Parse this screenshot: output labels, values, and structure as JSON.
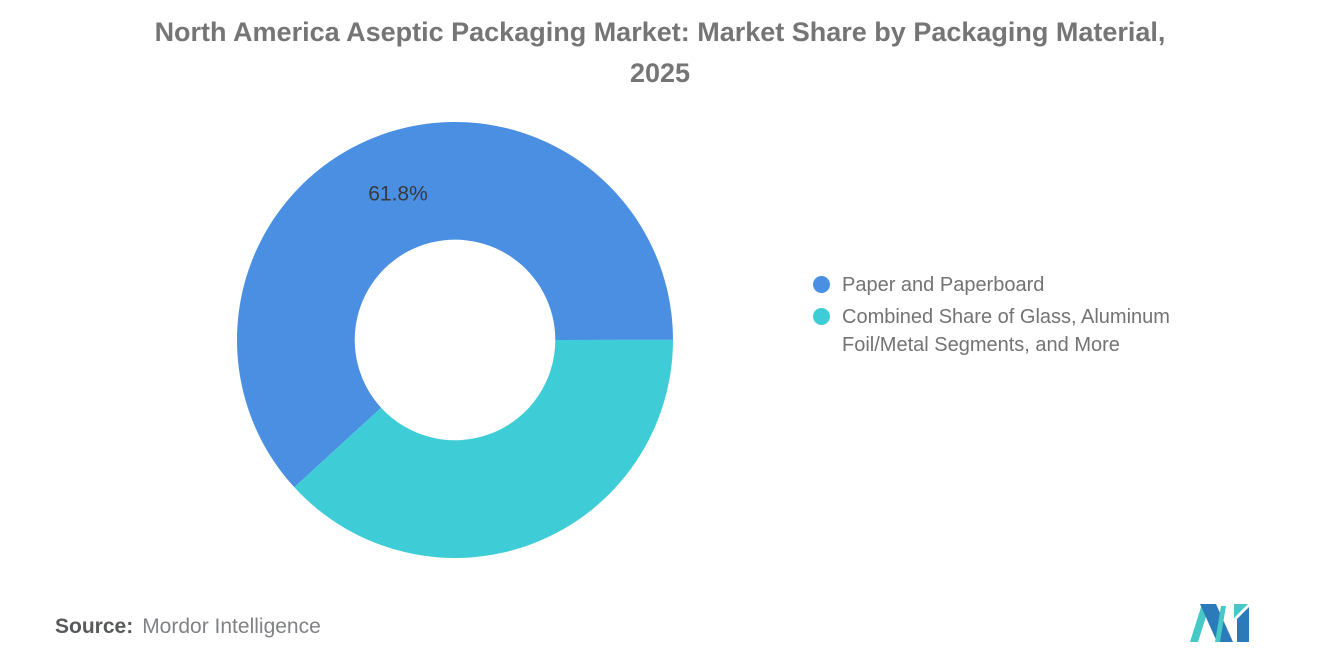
{
  "chart_data": {
    "type": "pie",
    "donut": true,
    "title": "North America Aseptic Packaging Market: Market Share by Packaging Material, 2025",
    "start_angle_deg": -132.5,
    "inner_radius_pct": 46,
    "legend_position": "right",
    "slices": [
      {
        "label": "Paper and Paperboard",
        "value": 61.8,
        "color": "#4A8FE2",
        "data_label": "61.8%"
      },
      {
        "label": "Combined Share of Glass, Aluminum Foil/Metal Segments, and More",
        "value": 38.2,
        "color": "#3ECDD6",
        "data_label": ""
      }
    ]
  },
  "legend": {
    "items": [
      {
        "label": "Paper and Paperboard",
        "color": "#4A8FE2"
      },
      {
        "label": "Combined Share of Glass, Aluminum Foil/Metal Segments, and More",
        "color": "#3ECDD6"
      }
    ]
  },
  "source": {
    "label": "Source:",
    "value": "Mordor Intelligence"
  },
  "logo": {
    "name": "Mordor Intelligence",
    "blue": "#2B7BBB",
    "teal": "#45C8C6"
  }
}
